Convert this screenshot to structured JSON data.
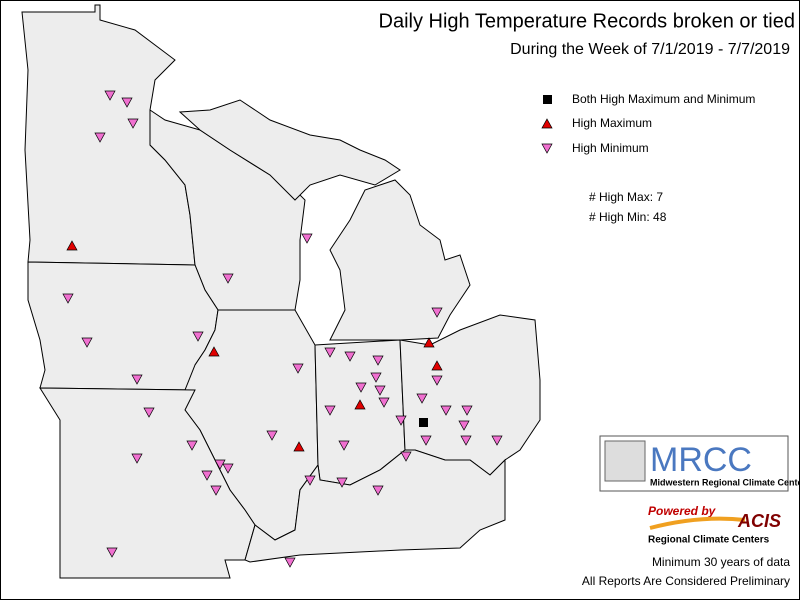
{
  "title": "Daily High Temperature Records broken or tied",
  "subtitle": "During the Week of 7/1/2019 - 7/7/2019",
  "legend": [
    "Both High Maximum and Minimum",
    "High Maximum",
    "High Minimum"
  ],
  "counts": [
    "# High Max: 7",
    "# High Min: 48"
  ],
  "logo": {
    "name": "MRCC",
    "subtitle": "Midwestern Regional Climate Center"
  },
  "acis": {
    "powered": "Powered by",
    "name": "ACIS",
    "subtitle": "Regional Climate Centers"
  },
  "footer": [
    "Minimum 30 years of data",
    "All Reports Are Considered Preliminary"
  ]
}
